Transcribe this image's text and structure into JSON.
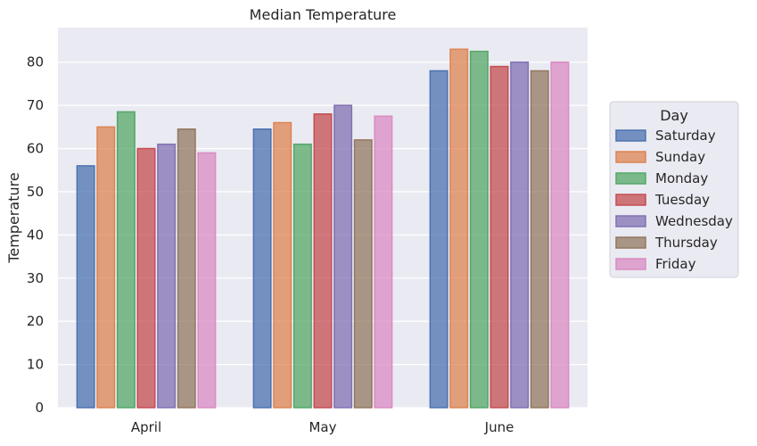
{
  "chart_data": {
    "type": "bar",
    "title": "Median Temperature",
    "xlabel": "",
    "ylabel": "Temperature",
    "ylim": [
      0,
      88
    ],
    "yticks": [
      0,
      10,
      20,
      30,
      40,
      50,
      60,
      70,
      80
    ],
    "categories": [
      "April",
      "May",
      "June"
    ],
    "grid": true,
    "legend": {
      "title": "Day",
      "placement": "right"
    },
    "series": [
      {
        "name": "Saturday",
        "color": "#4c72b0",
        "values": [
          56,
          64.5,
          78
        ]
      },
      {
        "name": "Sunday",
        "color": "#dd8452",
        "values": [
          65,
          66,
          83
        ]
      },
      {
        "name": "Monday",
        "color": "#55a868",
        "values": [
          68.5,
          61,
          82.5
        ]
      },
      {
        "name": "Tuesday",
        "color": "#c44e52",
        "values": [
          60,
          68,
          79
        ]
      },
      {
        "name": "Wednesday",
        "color": "#8172b3",
        "values": [
          61,
          70,
          80
        ]
      },
      {
        "name": "Thursday",
        "color": "#937860",
        "values": [
          64.5,
          62,
          78
        ]
      },
      {
        "name": "Friday",
        "color": "#da8bc3",
        "values": [
          59,
          67.5,
          80
        ]
      }
    ]
  }
}
